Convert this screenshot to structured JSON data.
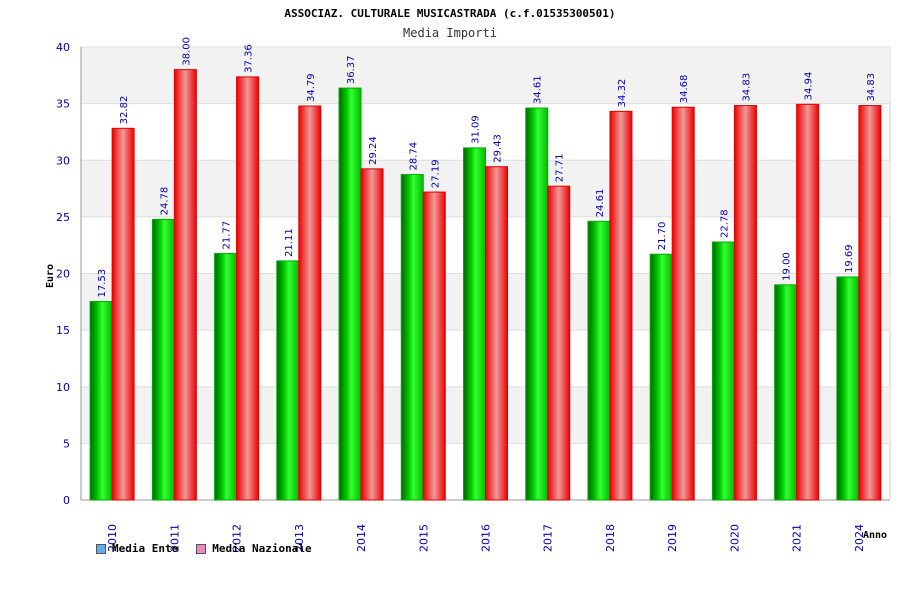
{
  "chart_data": {
    "type": "bar",
    "title": "ASSOCIAZ. CULTURALE MUSICASTRADA (c.f.01535300501)",
    "subtitle": "Media Importi",
    "ylabel": "Euro",
    "xlabel": "Anno",
    "ylim": [
      0,
      40
    ],
    "yticks": [
      0,
      5,
      10,
      15,
      20,
      25,
      30,
      35,
      40
    ],
    "grid": true,
    "legend_position": "bottom-left",
    "categories": [
      "2010",
      "2011",
      "2012",
      "2013",
      "2014",
      "2015",
      "2016",
      "2017",
      "2018",
      "2019",
      "2020",
      "2021",
      "2024"
    ],
    "series": [
      {
        "name": "Media Ente",
        "values": [
          17.53,
          24.78,
          21.77,
          21.11,
          36.37,
          28.74,
          31.09,
          34.61,
          24.61,
          21.7,
          22.78,
          19.0,
          19.69
        ],
        "labels": [
          "17.53",
          "24.78",
          "21.77",
          "21.11",
          "36.37",
          "28.74",
          "31.09",
          "34.61",
          "24.61",
          "21.70",
          "22.78",
          "19.00",
          "19.69"
        ],
        "color": "#00bb00",
        "legend_color": "#66aaee"
      },
      {
        "name": "Media Nazionale",
        "values": [
          32.82,
          38.0,
          37.36,
          34.79,
          29.24,
          27.19,
          29.43,
          27.71,
          34.32,
          34.68,
          34.83,
          34.94,
          34.83
        ],
        "labels": [
          "32.82",
          "38.00",
          "37.36",
          "34.79",
          "29.24",
          "27.19",
          "29.43",
          "27.71",
          "34.32",
          "34.68",
          "34.83",
          "34.94",
          "34.83"
        ],
        "color": "#ee2222",
        "legend_color": "#ee88bb"
      }
    ]
  }
}
